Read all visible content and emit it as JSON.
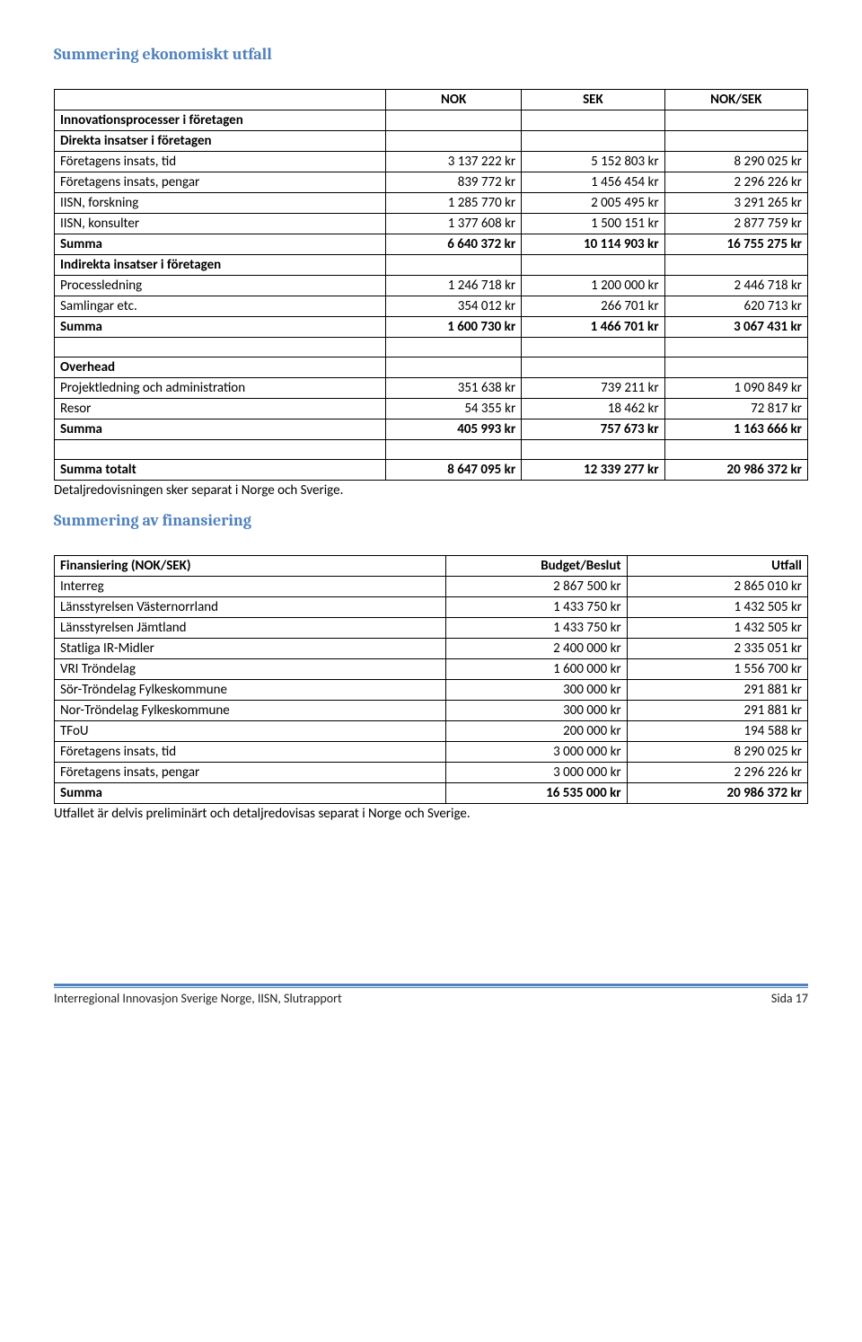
{
  "headings": {
    "h1": "Summering ekonomiskt utfall",
    "h2": "Summering av finansiering"
  },
  "table1": {
    "headers": [
      "",
      "NOK",
      "SEK",
      "NOK/SEK"
    ],
    "rows": [
      {
        "label": "Innovationsprocesser i företagen",
        "v": [
          "",
          "",
          ""
        ],
        "bold": true
      },
      {
        "label": "Direkta insatser i företagen",
        "v": [
          "",
          "",
          ""
        ],
        "bold": true
      },
      {
        "label": "Företagens insats, tid",
        "v": [
          "3 137 222 kr",
          "5 152 803 kr",
          "8 290 025 kr"
        ]
      },
      {
        "label": "Företagens insats, pengar",
        "v": [
          "839 772 kr",
          "1 456 454 kr",
          "2 296 226 kr"
        ]
      },
      {
        "label": "IISN, forskning",
        "v": [
          "1 285 770 kr",
          "2 005 495 kr",
          "3 291 265 kr"
        ]
      },
      {
        "label": "IISN, konsulter",
        "v": [
          "1 377 608 kr",
          "1 500 151 kr",
          "2 877 759 kr"
        ]
      },
      {
        "label": "Summa",
        "v": [
          "6 640 372 kr",
          "10 114 903 kr",
          "16 755 275 kr"
        ],
        "bold": true
      },
      {
        "label": "Indirekta insatser i företagen",
        "v": [
          "",
          "",
          ""
        ],
        "bold": true
      },
      {
        "label": "Processledning",
        "v": [
          "1 246 718 kr",
          "1 200 000 kr",
          "2 446 718 kr"
        ]
      },
      {
        "label": "Samlingar etc.",
        "v": [
          "354 012 kr",
          "266 701 kr",
          "620 713 kr"
        ]
      },
      {
        "label": "Summa",
        "v": [
          "1 600 730 kr",
          "1 466 701 kr",
          "3 067 431 kr"
        ],
        "bold": true
      },
      {
        "label": "",
        "v": [
          "",
          "",
          ""
        ]
      },
      {
        "label": "Overhead",
        "v": [
          "",
          "",
          ""
        ],
        "bold": true
      },
      {
        "label": "Projektledning och administration",
        "v": [
          "351 638 kr",
          "739 211 kr",
          "1 090 849 kr"
        ]
      },
      {
        "label": "Resor",
        "v": [
          "54 355 kr",
          "18 462 kr",
          "72 817 kr"
        ]
      },
      {
        "label": "Summa",
        "v": [
          "405 993 kr",
          "757 673 kr",
          "1 163 666 kr"
        ],
        "bold": true
      },
      {
        "label": "",
        "v": [
          "",
          "",
          ""
        ]
      },
      {
        "label": "Summa totalt",
        "v": [
          "8 647 095 kr",
          "12 339 277 kr",
          "20 986 372 kr"
        ],
        "bold": true
      }
    ],
    "note": "Detaljredovisningen sker separat i Norge och Sverige."
  },
  "table2": {
    "headers": [
      "Finansiering (NOK/SEK)",
      "Budget/Beslut",
      "Utfall"
    ],
    "rows": [
      {
        "label": "Interreg",
        "v": [
          "2 867 500 kr",
          "2 865 010 kr"
        ]
      },
      {
        "label": "Länsstyrelsen Västernorrland",
        "v": [
          "1 433 750 kr",
          "1 432 505 kr"
        ]
      },
      {
        "label": "Länsstyrelsen Jämtland",
        "v": [
          "1 433 750 kr",
          "1 432 505 kr"
        ]
      },
      {
        "label": "Statliga IR-Midler",
        "v": [
          "2 400 000 kr",
          "2 335 051 kr"
        ]
      },
      {
        "label": "VRI Tröndelag",
        "v": [
          "1 600 000 kr",
          "1 556 700 kr"
        ]
      },
      {
        "label": "Sör-Tröndelag Fylkeskommune",
        "v": [
          "300 000 kr",
          "291 881 kr"
        ]
      },
      {
        "label": "Nor-Tröndelag Fylkeskommune",
        "v": [
          "300 000 kr",
          "291 881 kr"
        ]
      },
      {
        "label": "TFoU",
        "v": [
          "200 000 kr",
          "194 588 kr"
        ]
      },
      {
        "label": "Företagens insats, tid",
        "v": [
          "3 000 000 kr",
          "8 290 025 kr"
        ]
      },
      {
        "label": "Företagens insats, pengar",
        "v": [
          "3 000 000 kr",
          "2 296 226 kr"
        ]
      },
      {
        "label": "Summa",
        "v": [
          "16 535 000 kr",
          "20 986 372 kr"
        ],
        "bold": true
      }
    ],
    "note": "Utfallet är delvis preliminärt och detaljredovisas separat i Norge och Sverige."
  },
  "footer": {
    "left": "Interregional Innovasjon Sverige Norge, IISN, Slutrapport",
    "right": "Sida 17"
  }
}
